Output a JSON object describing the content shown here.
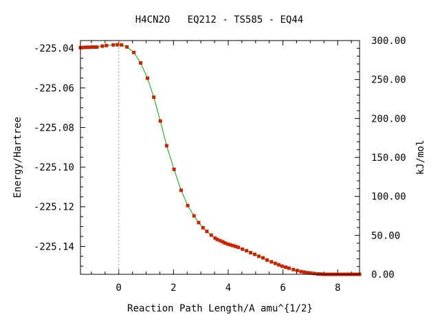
{
  "chart_data": {
    "type": "line",
    "title": "H4CN2O   EQ212 - TS585 - EQ44",
    "xlabel": "Reaction Path Length/A amu^{1/2}",
    "ylabel": "Energy/Hartree",
    "y2label": "kJ/mol",
    "xlim": [
      -1.4,
      8.8
    ],
    "ylim": [
      -225.1541,
      -225.0361
    ],
    "y2lim": [
      0,
      300
    ],
    "x_ticks": [
      0,
      2,
      4,
      6,
      8
    ],
    "x_tick_labels": [
      "0",
      "2",
      "4",
      "6",
      "8"
    ],
    "y_ticks": [
      -225.04,
      -225.06,
      -225.08,
      -225.1,
      -225.12,
      -225.14
    ],
    "y_tick_labels": [
      "-225.04",
      "-225.06",
      "-225.08",
      "-225.10",
      "-225.12",
      "-225.14"
    ],
    "y2_ticks": [
      0,
      50,
      100,
      150,
      200,
      250,
      300
    ],
    "y2_tick_labels": [
      "0.00",
      "50.00",
      "100.00",
      "150.00",
      "200.00",
      "250.00",
      "300.00"
    ],
    "ts_marker_x": 0,
    "grid": false,
    "series": [
      {
        "line_color": "#00aa00",
        "marker_color": "#cc2200",
        "x": [
          -1.4,
          -1.3,
          -1.2,
          -1.1,
          -1.0,
          -0.9,
          -0.8,
          -0.6,
          -0.45,
          -0.2,
          -0.05,
          0.1,
          0.3,
          0.55,
          0.8,
          1.05,
          1.28,
          1.52,
          1.75,
          2.02,
          2.28,
          2.52,
          2.75,
          2.92,
          3.08,
          3.22,
          3.38,
          3.52,
          3.6,
          3.7,
          3.8,
          3.88,
          3.98,
          4.07,
          4.17,
          4.27,
          4.37,
          4.52,
          4.67,
          4.82,
          4.97,
          5.12,
          5.27,
          5.42,
          5.58,
          5.72,
          5.85,
          5.97,
          6.1,
          6.22,
          6.38,
          6.52,
          6.66,
          6.78,
          6.9,
          7.02,
          7.15,
          7.28,
          7.4,
          7.5,
          7.6,
          7.7,
          7.8,
          7.9,
          8.0,
          8.1,
          8.2,
          8.3,
          8.4,
          8.5,
          8.6,
          8.7,
          8.8
        ],
        "y": [
          -225.0397,
          -225.0396,
          -225.0395,
          -225.0395,
          -225.0394,
          -225.0394,
          -225.0394,
          -225.0389,
          -225.0386,
          -225.0383,
          -225.0382,
          -225.0383,
          -225.0393,
          -225.0421,
          -225.0474,
          -225.0551,
          -225.0647,
          -225.0767,
          -225.0892,
          -225.1011,
          -225.1117,
          -225.1194,
          -225.1246,
          -225.128,
          -225.1306,
          -225.1324,
          -225.1343,
          -225.1358,
          -225.1365,
          -225.1371,
          -225.1377,
          -225.1383,
          -225.1388,
          -225.1392,
          -225.1396,
          -225.14,
          -225.1405,
          -225.1414,
          -225.1422,
          -225.1432,
          -225.144,
          -225.145,
          -225.1458,
          -225.1469,
          -225.1478,
          -225.1486,
          -225.1493,
          -225.15,
          -225.1505,
          -225.151,
          -225.1517,
          -225.1522,
          -225.1527,
          -225.153,
          -225.1533,
          -225.1535,
          -225.1537,
          -225.1539,
          -225.154,
          -225.1541,
          -225.1541,
          -225.1541,
          -225.1541,
          -225.1541,
          -225.1541,
          -225.1541,
          -225.1541,
          -225.1541,
          -225.1541,
          -225.1541,
          -225.1541,
          -225.1541,
          -225.1541
        ]
      }
    ]
  }
}
